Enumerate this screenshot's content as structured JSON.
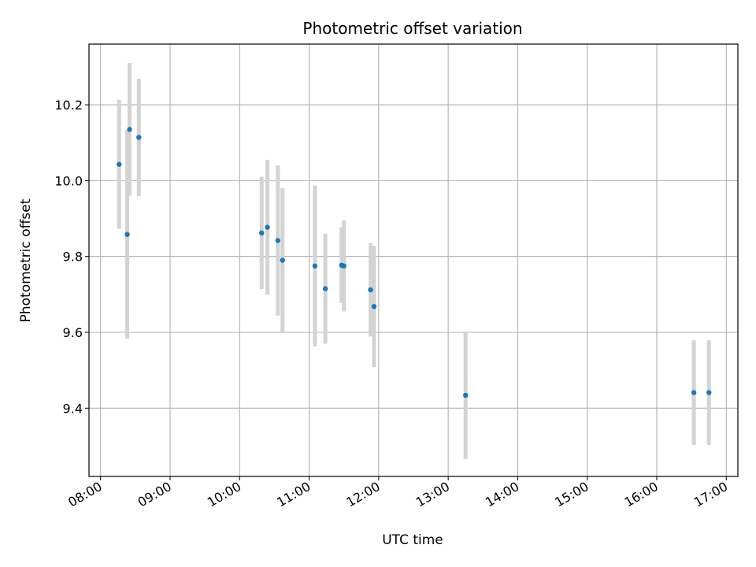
{
  "chart_data": {
    "type": "scatter",
    "title": "Photometric offset variation",
    "xlabel": "UTC time",
    "ylabel": "Photometric offset",
    "x_ticks": [
      "08:00",
      "09:00",
      "10:00",
      "11:00",
      "12:00",
      "13:00",
      "14:00",
      "15:00",
      "16:00",
      "17:00"
    ],
    "y_ticks": [
      "9.4",
      "9.6",
      "9.8",
      "10.0",
      "10.2"
    ],
    "xlim": [
      "07:50",
      "17:10"
    ],
    "ylim": [
      9.22,
      10.36
    ],
    "grid": true,
    "marker_color": "#1f77b4",
    "errorbar_color": "#d3d3d3",
    "points": [
      {
        "x": "08:16",
        "y": 10.043,
        "err": 0.17
      },
      {
        "x": "08:23",
        "y": 9.858,
        "err": 0.275
      },
      {
        "x": "08:25",
        "y": 10.135,
        "err": 0.175
      },
      {
        "x": "08:33",
        "y": 10.114,
        "err": 0.155
      },
      {
        "x": "10:19",
        "y": 9.862,
        "err": 0.148
      },
      {
        "x": "10:24",
        "y": 9.877,
        "err": 0.178
      },
      {
        "x": "10:33",
        "y": 9.842,
        "err": 0.198
      },
      {
        "x": "10:37",
        "y": 9.79,
        "err": 0.19
      },
      {
        "x": "11:05",
        "y": 9.775,
        "err": 0.212
      },
      {
        "x": "11:14",
        "y": 9.715,
        "err": 0.145
      },
      {
        "x": "11:28",
        "y": 9.777,
        "err": 0.1
      },
      {
        "x": "11:30",
        "y": 9.775,
        "err": 0.12
      },
      {
        "x": "11:53",
        "y": 9.712,
        "err": 0.123
      },
      {
        "x": "11:56",
        "y": 9.668,
        "err": 0.16
      },
      {
        "x": "13:15",
        "y": 9.434,
        "err": 0.168
      },
      {
        "x": "16:32",
        "y": 9.441,
        "err": 0.138
      },
      {
        "x": "16:45",
        "y": 9.441,
        "err": 0.138
      }
    ]
  }
}
